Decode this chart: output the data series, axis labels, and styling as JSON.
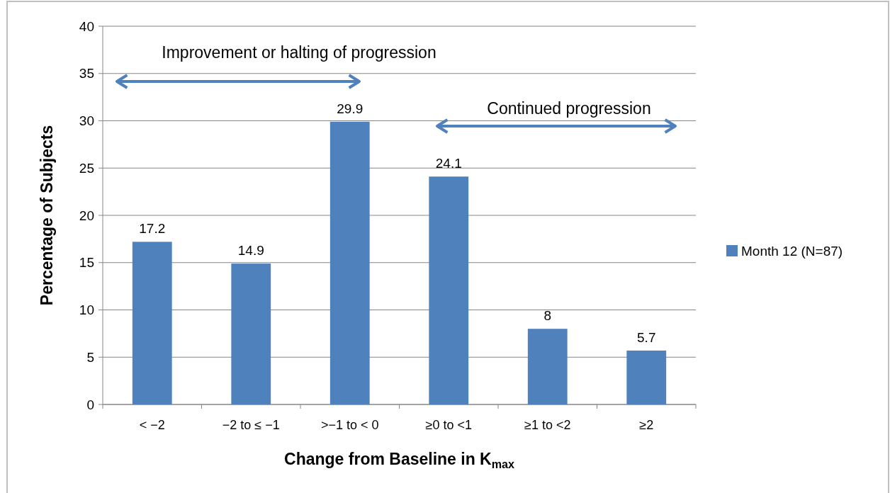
{
  "chart_data": {
    "type": "bar",
    "xlabel": "Change from Baseline in K$_{max}$",
    "ylabel": "Percentage of Subjects",
    "categories": [
      "< −2",
      "−2 to ≤ −1",
      ">−1 to < 0",
      "≥0 to <1",
      "≥1 to <2",
      "≥2"
    ],
    "series": [
      {
        "name": "Month 12 (N=87)",
        "color": "#4f81bd",
        "values": [
          17.2,
          14.9,
          29.9,
          24.1,
          8,
          5.7
        ]
      }
    ],
    "ylim": [
      0,
      40
    ],
    "yticks": [
      0,
      5,
      10,
      15,
      20,
      25,
      30,
      35,
      40
    ],
    "grid": "y",
    "legend": "right",
    "data_labels": true,
    "annotations": [
      "Improvement or halting of progression",
      "Continued  progression"
    ]
  }
}
